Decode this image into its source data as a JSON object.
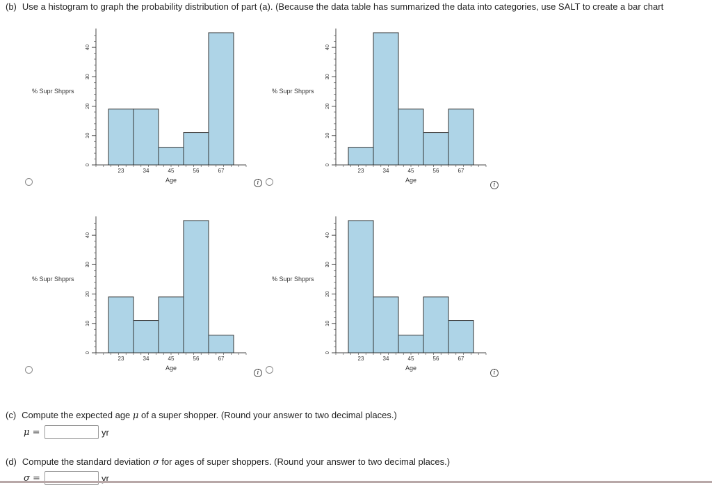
{
  "part_b": {
    "label": "(b)",
    "text": "Use a histogram to graph the probability distribution of part (a). (Because the data table has summarized the data into categories, use SALT to create a bar chart"
  },
  "info_glyph": "i",
  "part_c": {
    "label": "(c)",
    "text_before": "Compute the expected age",
    "symbol": "μ",
    "text_after": "of a super shopper. (Round your answer to two decimal places.)",
    "input_symbol": "μ =",
    "input_value": "",
    "unit": "yr"
  },
  "part_d": {
    "label": "(d)",
    "text_before": "Compute the standard deviation",
    "symbol": "σ",
    "text_after": "for ages of super shoppers. (Round your answer to two decimal places.)",
    "input_symbol": "σ =",
    "input_value": "",
    "unit": "yr"
  },
  "colors": {
    "bar_fill": "#aed4e7",
    "bar_stroke": "#333333",
    "axis": "#444444"
  },
  "chart_data": [
    {
      "type": "bar",
      "categories": [
        "23",
        "34",
        "45",
        "56",
        "67"
      ],
      "values": [
        19,
        19,
        6,
        11,
        45
      ],
      "xlabel": "Age",
      "ylabel": "% Supr Shpprs",
      "yticks": [
        0,
        10,
        20,
        30,
        40
      ],
      "ylim": [
        0,
        45
      ]
    },
    {
      "type": "bar",
      "categories": [
        "23",
        "34",
        "45",
        "56",
        "67"
      ],
      "values": [
        6,
        45,
        19,
        11,
        19
      ],
      "xlabel": "Age",
      "ylabel": "% Supr Shpprs",
      "yticks": [
        0,
        10,
        20,
        30,
        40
      ],
      "ylim": [
        0,
        45
      ]
    },
    {
      "type": "bar",
      "categories": [
        "23",
        "34",
        "45",
        "56",
        "67"
      ],
      "values": [
        19,
        11,
        19,
        45,
        6
      ],
      "xlabel": "Age",
      "ylabel": "% Supr Shpprs",
      "yticks": [
        0,
        10,
        20,
        30,
        40
      ],
      "ylim": [
        0,
        45
      ]
    },
    {
      "type": "bar",
      "categories": [
        "23",
        "34",
        "45",
        "56",
        "67"
      ],
      "values": [
        45,
        19,
        6,
        19,
        11
      ],
      "xlabel": "Age",
      "ylabel": "% Supr Shpprs",
      "yticks": [
        0,
        10,
        20,
        30,
        40
      ],
      "ylim": [
        0,
        45
      ]
    }
  ]
}
